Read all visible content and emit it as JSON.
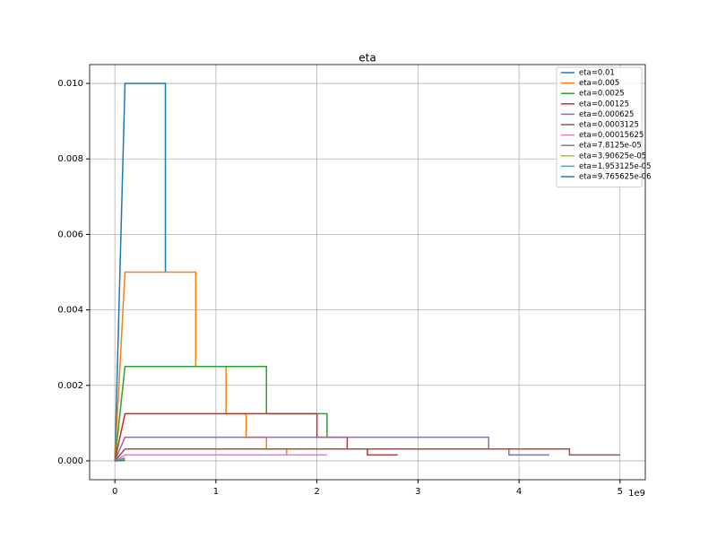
{
  "chart_data": {
    "type": "line",
    "title": "eta",
    "x_offset_label": "1e9",
    "xlim": [
      -0.25,
      5.25
    ],
    "ylim": [
      -0.0005,
      0.0105
    ],
    "xticks": [
      0,
      1,
      2,
      3,
      4,
      5
    ],
    "yticks": [
      {
        "value": 0,
        "label": "0.000"
      },
      {
        "value": 0.002,
        "label": "0.002"
      },
      {
        "value": 0.004,
        "label": "0.004"
      },
      {
        "value": 0.006,
        "label": "0.006"
      },
      {
        "value": 0.008,
        "label": "0.008"
      },
      {
        "value": 0.01,
        "label": "0.010"
      }
    ],
    "grid": true,
    "legend": "upper right",
    "series": [
      {
        "name": "eta=0.01",
        "color": "#1f77b4",
        "x": [
          0,
          0.1,
          0.5,
          0.5
        ],
        "values": [
          0,
          0.01,
          0.01,
          0.005
        ]
      },
      {
        "name": "eta=0.005",
        "color": "#ff7f0e",
        "x": [
          0,
          0.1,
          0.8,
          0.8,
          1.1,
          1.1,
          1.3,
          1.3,
          1.5,
          1.5,
          1.7,
          1.7
        ],
        "values": [
          0,
          0.005,
          0.005,
          0.0025,
          0.0025,
          0.00125,
          0.00125,
          0.000625,
          0.000625,
          0.0003125,
          0.0003125,
          0.00015625
        ]
      },
      {
        "name": "eta=0.0025",
        "color": "#2ca02c",
        "x": [
          0,
          0.1,
          1.5,
          1.5,
          2.1,
          2.1
        ],
        "values": [
          0,
          0.0025,
          0.0025,
          0.00125,
          0.00125,
          0.000625
        ]
      },
      {
        "name": "eta=0.00125",
        "color": "#d62728",
        "x": [
          0,
          0.1,
          2.0,
          2.0,
          2.3,
          2.3,
          2.5,
          2.5,
          2.8
        ],
        "values": [
          0,
          0.00125,
          0.00125,
          0.000625,
          0.000625,
          0.0003125,
          0.0003125,
          0.00015625,
          0.00015625
        ]
      },
      {
        "name": "eta=0.000625",
        "color": "#9467bd",
        "x": [
          0,
          0.1,
          3.7,
          3.7,
          3.9,
          3.9,
          4.3
        ],
        "values": [
          0,
          0.000625,
          0.000625,
          0.0003125,
          0.0003125,
          0.00015625,
          0.00015625
        ]
      },
      {
        "name": "eta=0.0003125",
        "color": "#8c564b",
        "x": [
          0,
          0.1,
          4.5,
          4.5,
          5.0
        ],
        "values": [
          0,
          0.0003125,
          0.0003125,
          0.00015625,
          0.00015625
        ]
      },
      {
        "name": "eta=0.00015625",
        "color": "#e377c2",
        "x": [
          0,
          0.1,
          2.1
        ],
        "values": [
          0,
          0.00015625,
          0.00015625
        ]
      },
      {
        "name": "eta=7.8125e-05",
        "color": "#7f7f7f",
        "x": [
          0,
          0.1
        ],
        "values": [
          0,
          7.8125e-05
        ]
      },
      {
        "name": "eta=3.90625e-05",
        "color": "#bcbd22",
        "x": [
          0,
          0.1
        ],
        "values": [
          0,
          3.90625e-05
        ]
      },
      {
        "name": "eta=1.953125e-05",
        "color": "#17becf",
        "x": [
          0,
          0.1
        ],
        "values": [
          0,
          1.953125e-05
        ]
      },
      {
        "name": "eta=9.765625e-06",
        "color": "#1f77b4",
        "x": [
          0,
          0.1
        ],
        "values": [
          0,
          9.765625e-06
        ]
      }
    ]
  }
}
